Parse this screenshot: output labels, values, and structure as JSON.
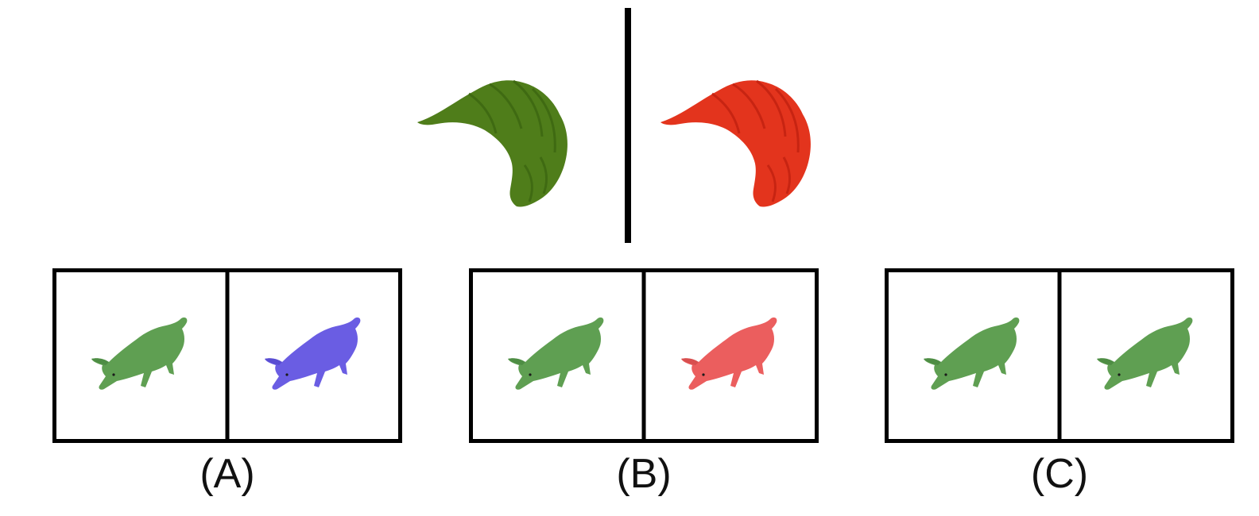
{
  "prompt": {
    "left_object": {
      "icon": "croissant-icon",
      "color": "#4f7d1a",
      "shade": "#3f6a12"
    },
    "right_object": {
      "icon": "croissant-icon",
      "color": "#e3341d",
      "shade": "#c72412"
    }
  },
  "options": [
    {
      "label": "(A)",
      "left": {
        "icon": "pig-icon",
        "color": "#5f9f52",
        "shade": "#3f7d38"
      },
      "right": {
        "icon": "pig-icon",
        "color": "#6a5de3",
        "shade": "#4b3fc4"
      }
    },
    {
      "label": "(B)",
      "left": {
        "icon": "pig-icon",
        "color": "#5f9f52",
        "shade": "#3f7d38"
      },
      "right": {
        "icon": "pig-icon",
        "color": "#eb5e5e",
        "shade": "#c94343"
      }
    },
    {
      "label": "(C)",
      "left": {
        "icon": "pig-icon",
        "color": "#5f9f52",
        "shade": "#3f7d38"
      },
      "right": {
        "icon": "pig-icon",
        "color": "#5f9f52",
        "shade": "#3f7d38"
      }
    }
  ]
}
